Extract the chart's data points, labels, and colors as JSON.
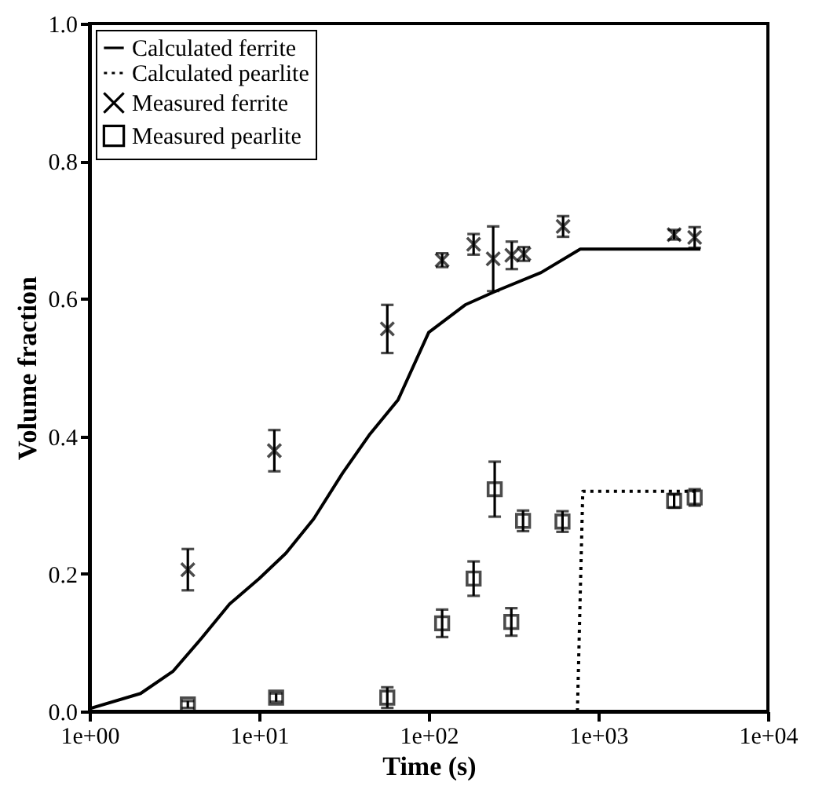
{
  "chart_data": {
    "type": "line",
    "xlabel": "Time (s)",
    "ylabel": "Volume fraction",
    "log": "x",
    "grid": false,
    "legend": "top left",
    "xlim": [
      1,
      10000
    ],
    "xticks": [
      {
        "value": 1,
        "label": "1e+00"
      },
      {
        "value": 10,
        "label": "1e+01"
      },
      {
        "value": 100,
        "label": "1e+02"
      },
      {
        "value": 1000,
        "label": "1e+03"
      },
      {
        "value": 10000,
        "label": "1e+04"
      }
    ],
    "ylim": [
      0,
      1
    ],
    "yticks": [
      {
        "value": 0,
        "label": "0.0"
      },
      {
        "value": 0.2,
        "label": "0.2"
      },
      {
        "value": 0.4,
        "label": "0.4"
      },
      {
        "value": 0.6,
        "label": "0.6"
      },
      {
        "value": 0.8,
        "label": "0.8"
      },
      {
        "value": 1,
        "label": "1.0"
      }
    ],
    "series": [
      {
        "name": "Calculated ferrite",
        "color": "#000000",
        "line_style": "solid",
        "x": [
          1,
          2,
          3.1,
          4.6,
          6.7,
          10,
          14.4,
          21,
          31,
          45,
          66,
          100,
          164,
          249,
          460,
          783,
          4000
        ],
        "values": [
          0.004,
          0.026,
          0.058,
          0.107,
          0.156,
          0.193,
          0.23,
          0.28,
          0.346,
          0.403,
          0.453,
          0.551,
          0.591,
          0.611,
          0.638,
          0.672,
          0.672
        ]
      },
      {
        "name": "Calculated pearlite",
        "color": "#000000",
        "line_style": "dotted",
        "x": [
          753,
          810,
          3700
        ],
        "values": [
          0,
          0.32,
          0.32
        ]
      },
      {
        "type": "scatter",
        "name": "Measured ferrite",
        "color": "#000000",
        "marker": "cross",
        "x": [
          3.8,
          12.3,
          57,
          120,
          184,
          240,
          309,
          364,
          620,
          2800,
          3700
        ],
        "values": [
          0.206,
          0.379,
          0.556,
          0.656,
          0.679,
          0.658,
          0.663,
          0.665,
          0.705,
          0.693,
          0.689
        ],
        "errors": [
          0.03,
          0.03,
          0.035,
          0.01,
          0.015,
          0.047,
          0.02,
          0.01,
          0.015,
          0.007,
          0.015
        ]
      },
      {
        "type": "scatter",
        "name": "Measured pearlite",
        "color": "#000000",
        "marker": "square",
        "x": [
          3.8,
          12.6,
          57,
          120,
          184,
          245,
          307,
          360,
          615,
          2800,
          3700
        ],
        "values": [
          0.01,
          0.02,
          0.02,
          0.128,
          0.193,
          0.323,
          0.13,
          0.277,
          0.276,
          0.306,
          0.311
        ],
        "errors": [
          0.005,
          0.006,
          0.015,
          0.02,
          0.025,
          0.04,
          0.02,
          0.015,
          0.015,
          0.01,
          0.012
        ]
      }
    ]
  }
}
